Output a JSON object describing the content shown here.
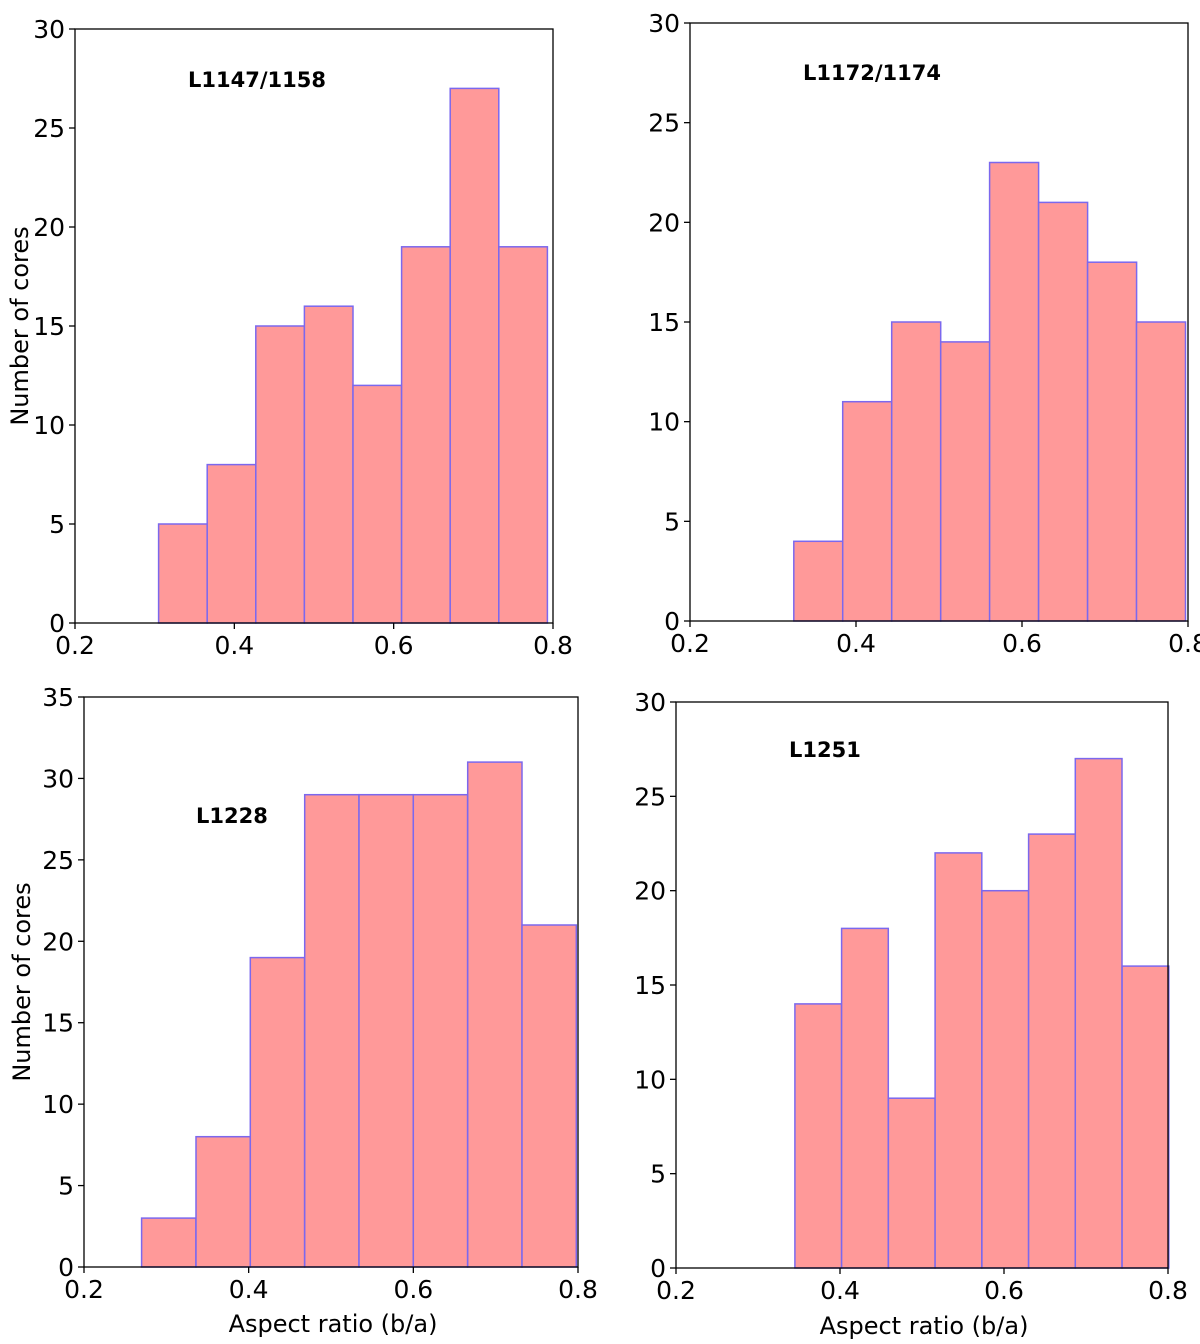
{
  "chart_data": [
    {
      "type": "bar",
      "title": "L1147/1158",
      "xlabel": "",
      "ylabel": "Number of cores",
      "xlim": [
        0.2,
        0.8
      ],
      "ylim": [
        0,
        30
      ],
      "xticks": [
        "0.2",
        "0.4",
        "0.6",
        "0.8"
      ],
      "yticks": [
        "0",
        "5",
        "10",
        "15",
        "20",
        "25",
        "30"
      ],
      "bin_edges": [
        0.305,
        0.366,
        0.427,
        0.488,
        0.549,
        0.61,
        0.671,
        0.732,
        0.793
      ],
      "values": [
        5,
        8,
        15,
        16,
        12,
        19,
        27,
        19
      ]
    },
    {
      "type": "bar",
      "title": "L1172/1174",
      "xlabel": "",
      "ylabel": "",
      "xlim": [
        0.2,
        0.8
      ],
      "ylim": [
        0,
        30
      ],
      "xticks": [
        "0.2",
        "0.4",
        "0.6",
        "0.8"
      ],
      "yticks": [
        "0",
        "5",
        "10",
        "15",
        "20",
        "25",
        "30"
      ],
      "bin_edges": [
        0.325,
        0.384,
        0.443,
        0.502,
        0.561,
        0.62,
        0.679,
        0.738,
        0.797
      ],
      "values": [
        4,
        11,
        15,
        14,
        23,
        21,
        18,
        15
      ]
    },
    {
      "type": "bar",
      "title": "L1228",
      "xlabel": "Aspect ratio (b/a)",
      "ylabel": "Number of cores",
      "xlim": [
        0.2,
        0.8
      ],
      "ylim": [
        0,
        35
      ],
      "xticks": [
        "0.2",
        "0.4",
        "0.6",
        "0.8"
      ],
      "yticks": [
        "0",
        "5",
        "10",
        "15",
        "20",
        "25",
        "30",
        "35"
      ],
      "bin_edges": [
        0.27,
        0.336,
        0.402,
        0.468,
        0.534,
        0.6,
        0.666,
        0.732,
        0.798
      ],
      "values": [
        3,
        8,
        19,
        29,
        29,
        29,
        31,
        21
      ]
    },
    {
      "type": "bar",
      "title": "L1251",
      "xlabel": "Aspect ratio (b/a)",
      "ylabel": "",
      "xlim": [
        0.2,
        0.8
      ],
      "ylim": [
        0,
        30
      ],
      "xticks": [
        "0.2",
        "0.4",
        "0.6",
        "0.8"
      ],
      "yticks": [
        "0",
        "5",
        "10",
        "15",
        "20",
        "25",
        "30"
      ],
      "bin_edges": [
        0.345,
        0.402,
        0.459,
        0.516,
        0.573,
        0.63,
        0.687,
        0.744,
        0.801
      ],
      "values": [
        14,
        18,
        9,
        22,
        20,
        23,
        27,
        16
      ]
    }
  ],
  "colors": {
    "bar_fill": "#ff9999",
    "bar_edge": "#7b68ee"
  }
}
